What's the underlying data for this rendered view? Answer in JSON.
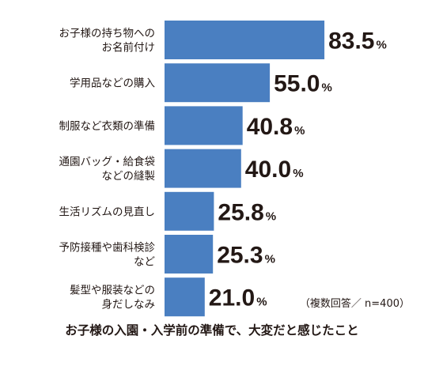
{
  "chart_data": {
    "type": "bar",
    "orientation": "horizontal",
    "title": "お子様の入園・入学前の準備で、大変だと感じたこと",
    "note": "（複数回答／ n=400）",
    "unit": "%",
    "bar_color": "#4a7fc1",
    "categories": [
      [
        "お子様の持ち物への",
        "お名前付け"
      ],
      [
        "学用品などの購入"
      ],
      [
        "制服など衣類の準備"
      ],
      [
        "通園バッグ・給食袋",
        "などの縫製"
      ],
      [
        "生活リズムの見直し"
      ],
      [
        "予防接種や歯科検診",
        "など"
      ],
      [
        "髪型や服装などの",
        "身だしなみ"
      ]
    ],
    "values": [
      83.5,
      55.0,
      40.8,
      40.0,
      25.8,
      25.3,
      21.0
    ],
    "value_labels": [
      "83.5",
      "55.0",
      "40.8",
      "40.0",
      "25.8",
      "25.3",
      "21.0"
    ],
    "xlim": [
      0,
      100
    ],
    "grid": false,
    "legend": false
  }
}
